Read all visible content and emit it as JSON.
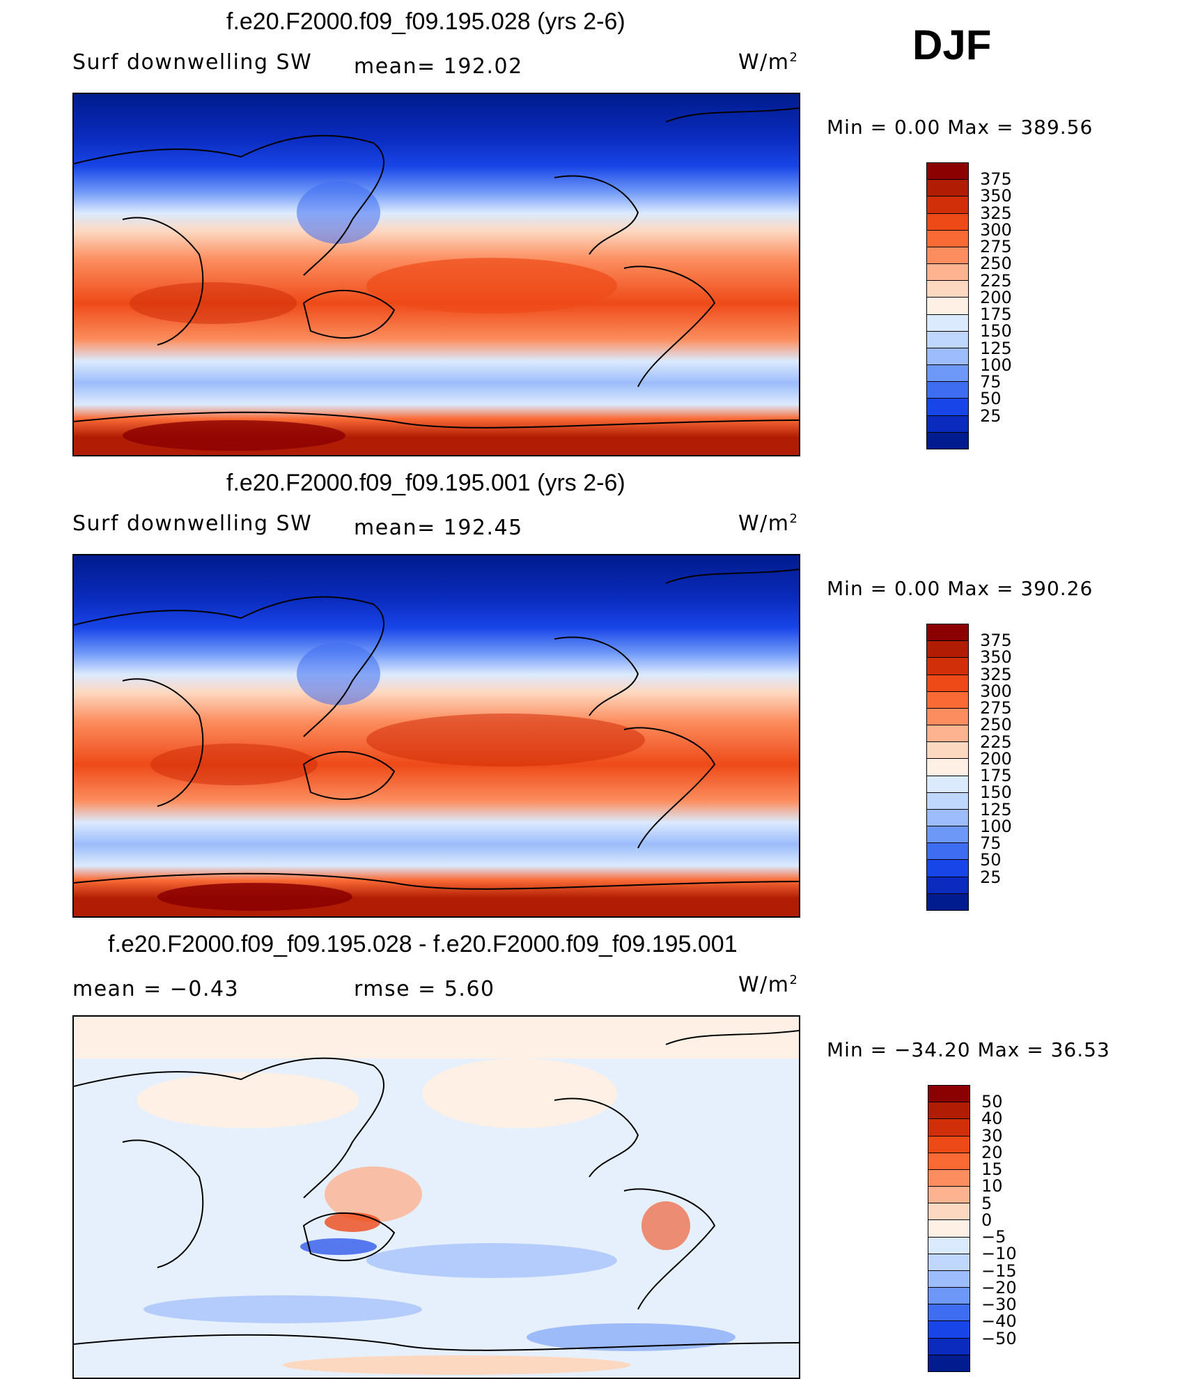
{
  "season": "DJF",
  "panels": [
    {
      "title": "f.e20.F2000.f09_f09.195.028 (yrs 2-6)",
      "variable": "Surf  downwelling SW",
      "stat": "mean=  192.02",
      "units_base": "W/m",
      "units_exp": "2",
      "minmax": "Min  =      0.00  Max  =  389.56",
      "levels": [
        "375",
        "350",
        "325",
        "300",
        "275",
        "250",
        "225",
        "200",
        "175",
        "150",
        "125",
        "100",
        "75",
        "50",
        "25"
      ],
      "colors": [
        "#8b0000",
        "#b01d04",
        "#d12e0a",
        "#ee4a18",
        "#fa6a35",
        "#fc8d5e",
        "#fdb290",
        "#fdd8c0",
        "#fef0e4",
        "#dbeafd",
        "#bfd6fd",
        "#9cbcfb",
        "#6e98f7",
        "#3f6df2",
        "#1845e8",
        "#0a2bbd",
        "#001c8e"
      ]
    },
    {
      "title": "f.e20.F2000.f09_f09.195.001 (yrs 2-6)",
      "variable": "Surf  downwelling SW",
      "stat": "mean=  192.45",
      "units_base": "W/m",
      "units_exp": "2",
      "minmax": "Min  =      0.00  Max  =  390.26",
      "levels": [
        "375",
        "350",
        "325",
        "300",
        "275",
        "250",
        "225",
        "200",
        "175",
        "150",
        "125",
        "100",
        "75",
        "50",
        "25"
      ],
      "colors": [
        "#8b0000",
        "#b01d04",
        "#d12e0a",
        "#ee4a18",
        "#fa6a35",
        "#fc8d5e",
        "#fdb290",
        "#fdd8c0",
        "#fef0e4",
        "#dbeafd",
        "#bfd6fd",
        "#9cbcfb",
        "#6e98f7",
        "#3f6df2",
        "#1845e8",
        "#0a2bbd",
        "#001c8e"
      ]
    },
    {
      "title": "f.e20.F2000.f09_f09.195.028 - f.e20.F2000.f09_f09.195.001",
      "variable": "",
      "stat_left": "mean  =    −0.43",
      "stat": "rmse  =     5.60",
      "units_base": "W/m",
      "units_exp": "2",
      "minmax": "Min  = −34.20  Max  =    36.53",
      "levels": [
        "50",
        "40",
        "30",
        "20",
        "15",
        "10",
        "5",
        "0",
        "−5",
        "−10",
        "−15",
        "−20",
        "−30",
        "−40",
        "−50"
      ],
      "colors": [
        "#8b0000",
        "#b01d04",
        "#d12e0a",
        "#ee4a18",
        "#fa6a35",
        "#fc8d5e",
        "#fdb290",
        "#fdd8c0",
        "#fef0e4",
        "#dbeafd",
        "#bfd6fd",
        "#9cbcfb",
        "#6e98f7",
        "#3f6df2",
        "#1845e8",
        "#0a2bbd",
        "#001c8e"
      ]
    }
  ]
}
